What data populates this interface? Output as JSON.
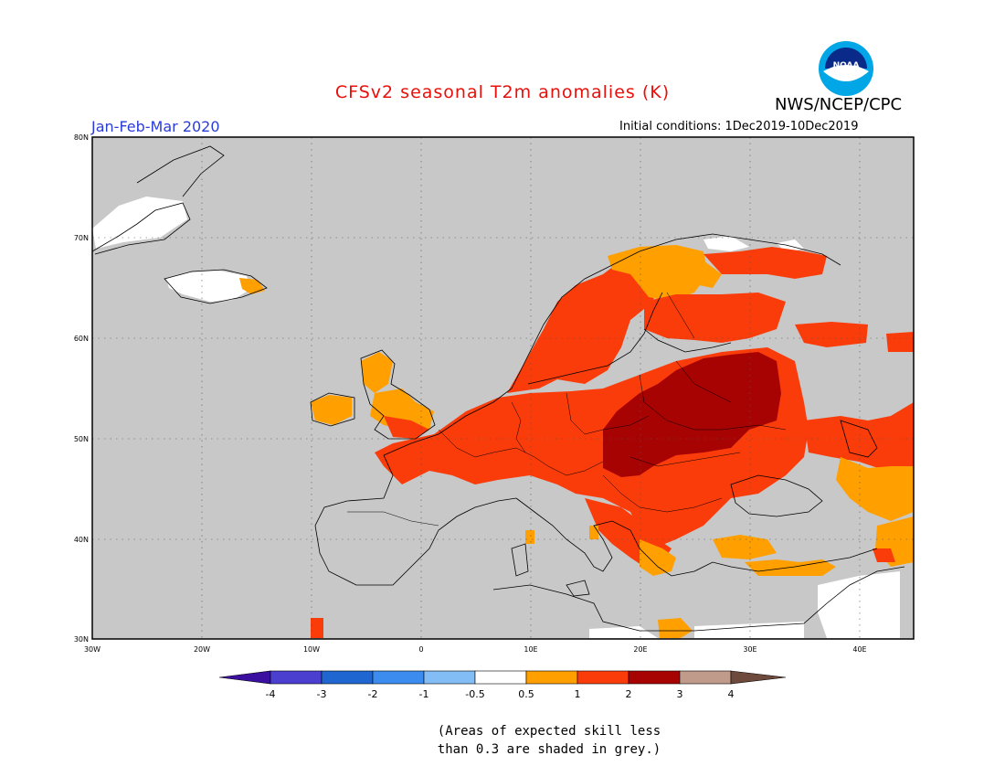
{
  "header": {
    "title": "CFSv2 seasonal T2m anomalies (K)",
    "org": "NWS/NCEP/CPC",
    "period": "Jan-Feb-Mar 2020",
    "initial_conditions": "Initial conditions: 1Dec2019-10Dec2019",
    "logo_text": "NOAA"
  },
  "map": {
    "lon_range": [
      -30,
      45
    ],
    "lat_range": [
      30,
      80
    ],
    "lat_ticks": [
      "30N",
      "40N",
      "50N",
      "60N",
      "70N",
      "80N"
    ],
    "lon_ticks": [
      "30W",
      "20W",
      "10W",
      "0",
      "10E",
      "20E",
      "30E",
      "40E"
    ],
    "land_color": "#c8c8c8",
    "ocean_color": "#c8c8c8"
  },
  "colorbar": {
    "ticks": [
      "-4",
      "-3",
      "-2",
      "-1",
      "-0.5",
      "0.5",
      "1",
      "2",
      "3",
      "4"
    ],
    "colors": [
      "#3b0fa0",
      "#4a3fcf",
      "#1f66d0",
      "#3c8cf0",
      "#82bdf5",
      "#ffffff",
      "#ff9f00",
      "#fa3c0a",
      "#a80303",
      "#c09a8a",
      "#6e4a3c"
    ]
  },
  "footnote": {
    "line1": "(Areas of expected skill less",
    "line2": "than 0.3 are shaded in grey.)"
  },
  "chart_data": {
    "type": "heatmap",
    "variable": "T2m anomaly",
    "unit": "K",
    "regions": [
      {
        "area": "Scandinavia / Norway coast",
        "category": "1 to 2"
      },
      {
        "area": "Northern Sweden / Finland",
        "category": "0.5 to 2"
      },
      {
        "area": "Baltic / Belarus / W Russia",
        "category": "2 to 3"
      },
      {
        "area": "Poland / Slovakia / Hungary",
        "category": "2 to 3"
      },
      {
        "area": "France / Germany / Benelux",
        "category": "1 to 2"
      },
      {
        "area": "Balkans / Romania",
        "category": "1 to 2"
      },
      {
        "area": "British Isles",
        "category": "0.5 to 1"
      },
      {
        "area": "Black Sea / Turkey / Caucasus",
        "category": "0.5 to 2"
      },
      {
        "area": "Iberia / Italy / N Africa / Atlantic",
        "category": "grey (low skill)"
      }
    ]
  }
}
